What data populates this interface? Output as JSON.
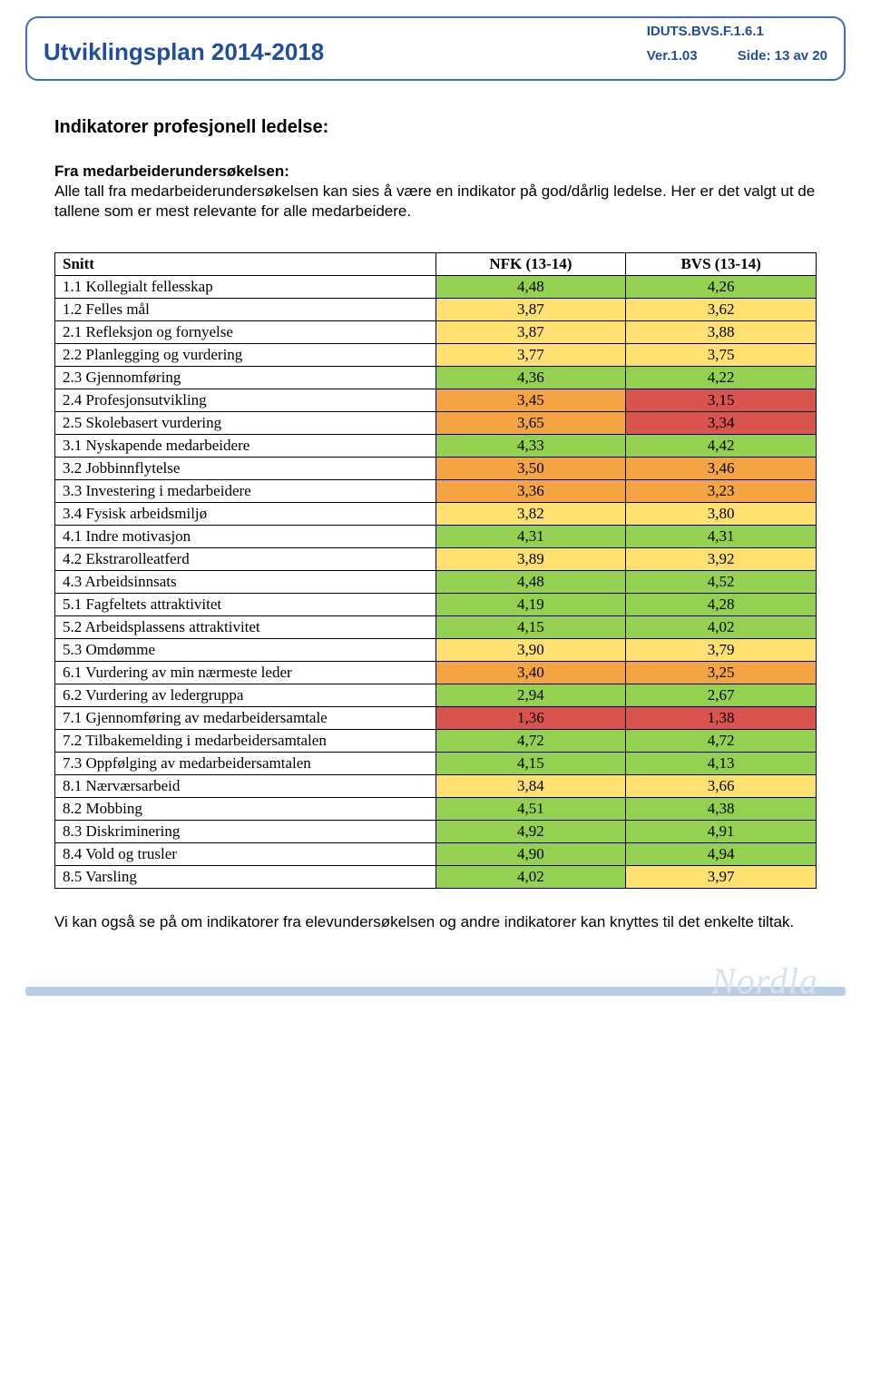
{
  "header": {
    "title": "Utviklingsplan 2014-2018",
    "doc_id": "IDUTS.BVS.F.1.6.1",
    "version": "Ver.1.03",
    "side": "Side: 13 av 20"
  },
  "section_heading": "Indikatorer profesjonell ledelse:",
  "intro": {
    "line1_bold": "Fra medarbeiderundersøkelsen:",
    "line2": "Alle tall fra medarbeiderundersøkelsen kan sies å være en indikator på god/dårlig ledelse. Her er det valgt ut de tallene som er mest relevante for alle medarbeidere."
  },
  "table": {
    "headers": {
      "c0": "Snitt",
      "c1": "NFK  (13-14)",
      "c2": "BVS (13-14)"
    },
    "color_map": {
      "green": "#95d151",
      "yellow": "#ffe070",
      "orange": "#f4a442",
      "red": "#d9534f"
    },
    "rows": [
      {
        "label": "1.1 Kollegialt fellesskap",
        "v1": "4,48",
        "v2": "4,26",
        "c1": "green",
        "c2": "green"
      },
      {
        "label": "1.2 Felles mål",
        "v1": "3,87",
        "v2": "3,62",
        "c1": "yellow",
        "c2": "yellow"
      },
      {
        "label": "2.1 Refleksjon og fornyelse",
        "v1": "3,87",
        "v2": "3,88",
        "c1": "yellow",
        "c2": "yellow"
      },
      {
        "label": "2.2 Planlegging og vurdering",
        "v1": "3,77",
        "v2": "3,75",
        "c1": "yellow",
        "c2": "yellow"
      },
      {
        "label": "2.3 Gjennomføring",
        "v1": "4,36",
        "v2": "4,22",
        "c1": "green",
        "c2": "green"
      },
      {
        "label": "2.4 Profesjonsutvikling",
        "v1": "3,45",
        "v2": "3,15",
        "c1": "orange",
        "c2": "red"
      },
      {
        "label": "2.5 Skolebasert vurdering",
        "v1": "3,65",
        "v2": "3,34",
        "c1": "orange",
        "c2": "red"
      },
      {
        "label": "3.1 Nyskapende medarbeidere",
        "v1": "4,33",
        "v2": "4,42",
        "c1": "green",
        "c2": "green"
      },
      {
        "label": "3.2 Jobbinnflytelse",
        "v1": "3,50",
        "v2": "3,46",
        "c1": "orange",
        "c2": "orange"
      },
      {
        "label": "3.3 Investering i medarbeidere",
        "v1": "3,36",
        "v2": "3,23",
        "c1": "orange",
        "c2": "orange"
      },
      {
        "label": "3.4 Fysisk arbeidsmiljø",
        "v1": "3,82",
        "v2": "3,80",
        "c1": "yellow",
        "c2": "yellow"
      },
      {
        "label": "4.1 Indre motivasjon",
        "v1": "4,31",
        "v2": "4,31",
        "c1": "green",
        "c2": "green"
      },
      {
        "label": "4.2 Ekstrarolleatferd",
        "v1": "3,89",
        "v2": "3,92",
        "c1": "yellow",
        "c2": "yellow"
      },
      {
        "label": "4.3 Arbeidsinnsats",
        "v1": "4,48",
        "v2": "4,52",
        "c1": "green",
        "c2": "green"
      },
      {
        "label": "5.1 Fagfeltets attraktivitet",
        "v1": "4,19",
        "v2": "4,28",
        "c1": "green",
        "c2": "green"
      },
      {
        "label": "5.2 Arbeidsplassens attraktivitet",
        "v1": "4,15",
        "v2": "4,02",
        "c1": "green",
        "c2": "green"
      },
      {
        "label": "5.3 Omdømme",
        "v1": "3,90",
        "v2": "3,79",
        "c1": "yellow",
        "c2": "yellow"
      },
      {
        "label": "6.1 Vurdering av min nærmeste leder",
        "v1": "3,40",
        "v2": "3,25",
        "c1": "orange",
        "c2": "orange"
      },
      {
        "label": "6.2 Vurdering av ledergruppa",
        "v1": "2,94",
        "v2": "2,67",
        "c1": "green",
        "c2": "green"
      },
      {
        "label": "7.1 Gjennomføring av medarbeidersamtale",
        "v1": "1,36",
        "v2": "1,38",
        "c1": "red",
        "c2": "red"
      },
      {
        "label": "7.2 Tilbakemelding i medarbeidersamtalen",
        "v1": "4,72",
        "v2": "4,72",
        "c1": "green",
        "c2": "green"
      },
      {
        "label": "7.3 Oppfølging av medarbeidersamtalen",
        "v1": "4,15",
        "v2": "4,13",
        "c1": "green",
        "c2": "green"
      },
      {
        "label": "8.1 Nærværsarbeid",
        "v1": "3,84",
        "v2": "3,66",
        "c1": "yellow",
        "c2": "yellow"
      },
      {
        "label": "8.2 Mobbing",
        "v1": "4,51",
        "v2": "4,38",
        "c1": "green",
        "c2": "green"
      },
      {
        "label": "8.3 Diskriminering",
        "v1": "4,92",
        "v2": "4,91",
        "c1": "green",
        "c2": "green"
      },
      {
        "label": "8.4 Vold og trusler",
        "v1": "4,90",
        "v2": "4,94",
        "c1": "green",
        "c2": "green"
      },
      {
        "label": "8.5 Varsling",
        "v1": "4,02",
        "v2": "3,97",
        "c1": "green",
        "c2": "yellow"
      }
    ]
  },
  "footer_text": "Vi kan også se på om indikatorer fra elevundersøkelsen og andre indikatorer kan knyttes til det enkelte tiltak.",
  "footer_logo": "Nordla"
}
